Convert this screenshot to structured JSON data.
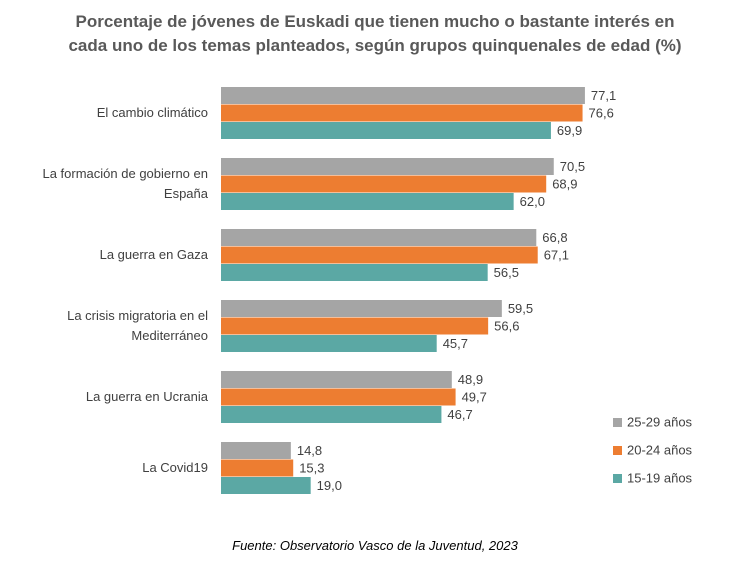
{
  "chart_data": {
    "type": "bar",
    "orientation": "horizontal",
    "title": "Porcentaje de jóvenes de Euskadi que tienen mucho o bastante interés en cada uno de los temas planteados, según grupos quinquenales de edad (%)",
    "source": "Fuente: Observatorio Vasco de la Juventud, 2023",
    "categories": [
      "El cambio climático",
      "La formación de gobierno en España",
      "La guerra en Gaza",
      "La crisis migratoria en el Mediterráneo",
      "La guerra en Ucrania",
      "La Covid19"
    ],
    "series": [
      {
        "name": "25-29 años",
        "color": "#a5a5a5",
        "values": [
          77.1,
          70.5,
          66.8,
          59.5,
          48.9,
          14.8
        ],
        "value_labels": [
          "77,1",
          "70,5",
          "66,8",
          "59,5",
          "48,9",
          "14,8"
        ]
      },
      {
        "name": "20-24 años",
        "color": "#ed7d31",
        "values": [
          76.6,
          68.9,
          67.1,
          56.6,
          49.7,
          15.3
        ],
        "value_labels": [
          "76,6",
          "68,9",
          "67,1",
          "56,6",
          "49,7",
          "15,3"
        ]
      },
      {
        "name": "15-19 años",
        "color": "#5ba8a4",
        "values": [
          69.9,
          62.0,
          56.5,
          45.7,
          46.7,
          19.0
        ],
        "value_labels": [
          "69,9",
          "62,0",
          "56,5",
          "45,7",
          "46,7",
          "19,0"
        ]
      }
    ],
    "xlim": [
      0,
      100
    ],
    "legend": "right"
  }
}
